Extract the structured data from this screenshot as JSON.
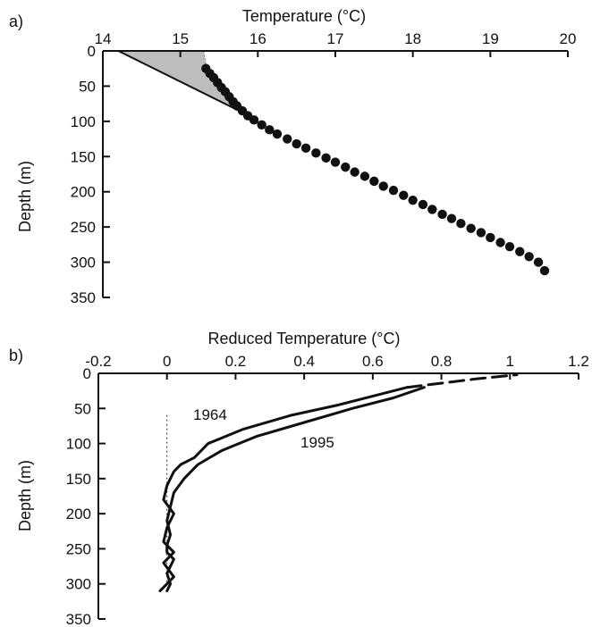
{
  "chart_data": [
    {
      "panel_label": "a)",
      "type": "scatter",
      "title": "",
      "xlabel": "Temperature (°C)",
      "ylabel": "Depth (m)",
      "xlim": [
        14,
        20
      ],
      "ylim": [
        0,
        350
      ],
      "x_axis_position": "top",
      "y_inverted": true,
      "grid": false,
      "xticks": [
        "14",
        "15",
        "16",
        "17",
        "18",
        "19",
        "20"
      ],
      "yticks": [
        "0",
        "50",
        "100",
        "150",
        "200",
        "250",
        "300",
        "350"
      ],
      "series": [
        {
          "kind": "points",
          "color": "#111111",
          "x": [
            15.33,
            15.38,
            15.43,
            15.48,
            15.53,
            15.58,
            15.63,
            15.68,
            15.73,
            15.8,
            15.87,
            15.95,
            16.05,
            16.15,
            16.25,
            16.38,
            16.5,
            16.62,
            16.75,
            16.88,
            17.0,
            17.13,
            17.25,
            17.38,
            17.5,
            17.62,
            17.75,
            17.88,
            18.0,
            18.13,
            18.25,
            18.38,
            18.5,
            18.62,
            18.75,
            18.88,
            19.0,
            19.13,
            19.25,
            19.38,
            19.5,
            19.62,
            19.7
          ],
          "y": [
            25,
            32,
            38,
            45,
            52,
            58,
            65,
            72,
            78,
            85,
            92,
            98,
            105,
            112,
            118,
            125,
            132,
            138,
            145,
            152,
            158,
            165,
            172,
            178,
            185,
            192,
            198,
            205,
            212,
            218,
            225,
            232,
            238,
            245,
            252,
            258,
            265,
            272,
            278,
            285,
            292,
            300,
            312
          ]
        },
        {
          "kind": "line",
          "color": "#111111",
          "x": [
            14.2,
            15.85
          ],
          "y": [
            0,
            90
          ]
        },
        {
          "kind": "shaded-area",
          "color": "#bdbdbd",
          "x": [
            14.2,
            15.3,
            15.35,
            15.5,
            15.65,
            15.8,
            15.85
          ],
          "y": [
            0,
            0,
            30,
            48,
            65,
            80,
            90
          ]
        }
      ]
    },
    {
      "panel_label": "b)",
      "type": "line",
      "title": "",
      "xlabel": "Reduced Temperature (°C)",
      "ylabel": "Depth (m)",
      "xlim": [
        -0.2,
        1.2
      ],
      "ylim": [
        0,
        350
      ],
      "x_axis_position": "top",
      "y_inverted": true,
      "grid": false,
      "xticks": [
        "-0.2",
        "0",
        "0.2",
        "0.4",
        "0.6",
        "0.8",
        "1",
        "1.2"
      ],
      "yticks": [
        "0",
        "50",
        "100",
        "150",
        "200",
        "250",
        "300",
        "350"
      ],
      "annotations": [
        "1964",
        "1995"
      ],
      "series": [
        {
          "name": "1964",
          "color": "#111111",
          "x": [
            0.7,
            0.62,
            0.5,
            0.36,
            0.22,
            0.12,
            0.08,
            0.04,
            0.02,
            0.0,
            -0.01,
            0.02,
            0.0,
            -0.01,
            0.02,
            -0.01,
            0.02,
            0.0,
            -0.02
          ],
          "y": [
            20,
            30,
            45,
            60,
            80,
            100,
            120,
            130,
            140,
            160,
            180,
            200,
            220,
            240,
            255,
            270,
            290,
            300,
            310
          ]
        },
        {
          "name": "1995",
          "color": "#111111",
          "x": [
            0.75,
            0.66,
            0.54,
            0.4,
            0.26,
            0.16,
            0.09,
            0.05,
            0.02,
            0.01,
            0.0,
            0.01,
            0.0,
            0.0,
            0.02,
            0.0,
            0.01,
            0.0
          ],
          "y": [
            20,
            35,
            50,
            70,
            90,
            110,
            130,
            150,
            170,
            190,
            210,
            230,
            245,
            255,
            265,
            285,
            300,
            310
          ]
        },
        {
          "name": "",
          "style": "dashed",
          "color": "#111111",
          "x": [
            0.7,
            0.9,
            1.02
          ],
          "y": [
            20,
            8,
            2
          ]
        },
        {
          "name": "",
          "style": "dotted-reference",
          "color": "#111111",
          "x": [
            0.0,
            0.0
          ],
          "y": [
            60,
            300
          ]
        }
      ]
    }
  ]
}
